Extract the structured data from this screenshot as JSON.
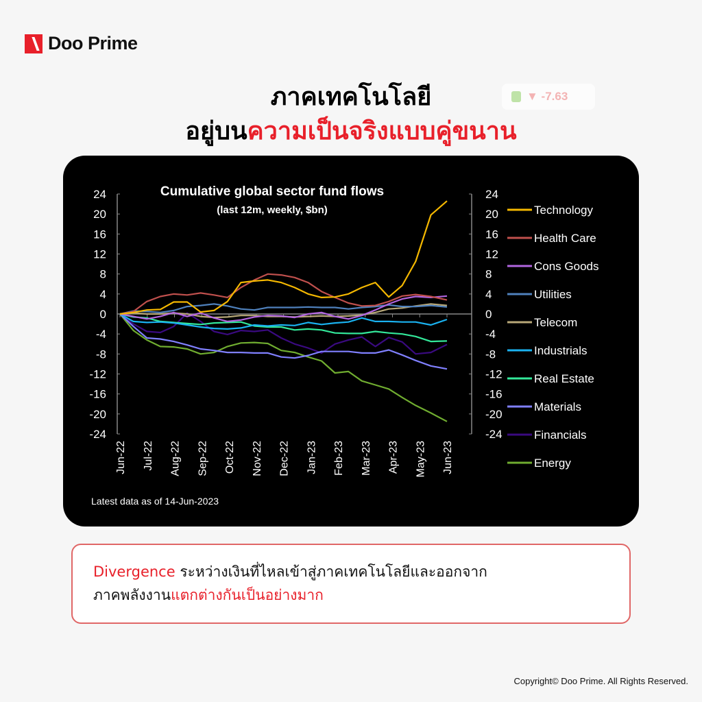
{
  "brand": {
    "name": "Doo Prime"
  },
  "background_badge": {
    "value": "▼ -7.63"
  },
  "headline": {
    "line1": "ภาคเทคโนโลยี",
    "line2_black": "อยู่บน",
    "line2_red": "ความเป็นจริงแบบคู่ขนาน"
  },
  "caption": {
    "line1_red": "Divergence",
    "line1_black": " ระหว่างเงินที่ไหลเข้าสู่ภาคเทคโนโลยีและออกจาก",
    "line2_black": "ภาคพลังงาน",
    "line2_red": "แตกต่างกันเป็นอย่างมาก"
  },
  "copyright": "Copyright© Doo Prime. All Rights Reserved.",
  "colors": {
    "accent": "#e8202a",
    "card": "#000000"
  },
  "chart_data": {
    "type": "line",
    "title": "Cumulative global sector fund flows",
    "subtitle": "(last 12m, weekly, $bn)",
    "note": "Latest data as of 14-Jun-2023",
    "ylim": [
      -24,
      24
    ],
    "yticks": [
      "24",
      "20",
      "16",
      "12",
      "8",
      "4",
      "0",
      "-4",
      "-8",
      "-12",
      "-16",
      "-20",
      "-24"
    ],
    "xlim": [
      "2022-06-14",
      "2023-06-14"
    ],
    "xticks": [
      "Jun-22",
      "Jul-22",
      "Aug-22",
      "Sep-22",
      "Oct-22",
      "Nov-22",
      "Dec-22",
      "Jan-23",
      "Feb-23",
      "Mar-23",
      "Apr-23",
      "May-23",
      "Jun-23"
    ],
    "grid": false,
    "legend": "right",
    "x": [
      "2022-06-14",
      "2022-06-29",
      "2022-07-14",
      "2022-07-29",
      "2022-08-13",
      "2022-08-28",
      "2022-09-12",
      "2022-09-27",
      "2022-10-12",
      "2022-10-27",
      "2022-11-11",
      "2022-11-26",
      "2022-12-11",
      "2022-12-26",
      "2023-01-10",
      "2023-01-25",
      "2023-02-09",
      "2023-02-24",
      "2023-03-11",
      "2023-03-26",
      "2023-04-10",
      "2023-04-25",
      "2023-05-10",
      "2023-05-27",
      "2023-06-14"
    ],
    "series": [
      {
        "name": "Technology",
        "color": "#f5b800",
        "values": [
          0,
          0.3,
          0.8,
          0.9,
          2.4,
          2.4,
          0.4,
          0.7,
          2.5,
          6.3,
          6.6,
          6.8,
          6.3,
          5.3,
          4,
          3.3,
          3.4,
          4,
          5.3,
          6.3,
          3.4,
          5.7,
          10.5,
          19.8,
          22.6
        ]
      },
      {
        "name": "Health Care",
        "color": "#c0504d",
        "values": [
          0,
          0.5,
          2.5,
          3.5,
          4,
          3.8,
          4.2,
          3.8,
          3.3,
          5.3,
          6.8,
          8,
          7.8,
          7.3,
          6.3,
          4.5,
          3.3,
          2.2,
          1.6,
          1.7,
          2.5,
          3.6,
          3.9,
          3.5,
          2.8
        ]
      },
      {
        "name": "Cons Goods",
        "color": "#b266e0",
        "values": [
          0,
          -0.5,
          -1,
          -0.5,
          0.3,
          -0.5,
          0.2,
          -0.8,
          -1.5,
          -1.2,
          -0.6,
          -0.3,
          -0.4,
          -0.7,
          0,
          0.3,
          -0.5,
          -1,
          -0.3,
          0.8,
          2,
          3,
          3.5,
          3.3,
          3.6
        ]
      },
      {
        "name": "Utilities",
        "color": "#4f81bd",
        "values": [
          0,
          0.6,
          0.5,
          0.3,
          0.7,
          1.5,
          1.7,
          2,
          1.6,
          1,
          0.8,
          1.3,
          1.3,
          1.3,
          1.4,
          1.3,
          1.3,
          1,
          1.3,
          1.5,
          1.8,
          1.5,
          1.5,
          1.7,
          1.4
        ]
      },
      {
        "name": "Telecom",
        "color": "#b8a878",
        "values": [
          0,
          0.2,
          0,
          0,
          0.2,
          0,
          -0.5,
          -0.7,
          -0.6,
          -0.3,
          -0.3,
          -0.5,
          -0.5,
          -0.6,
          -0.5,
          -0.4,
          -0.5,
          -0.4,
          -0.2,
          0.3,
          1,
          1.2,
          1.6,
          2,
          1.7
        ]
      },
      {
        "name": "Industrials",
        "color": "#1ab2f0",
        "values": [
          0,
          -1.5,
          -1.7,
          -1.6,
          -1.8,
          -2.2,
          -2.6,
          -2.9,
          -3,
          -2.8,
          -2.2,
          -2.4,
          -2.2,
          -2.3,
          -1.7,
          -2.1,
          -1.8,
          -1.6,
          -0.8,
          -1.5,
          -1.5,
          -1.6,
          -1.6,
          -2.2,
          -1.1
        ]
      },
      {
        "name": "Real Estate",
        "color": "#33e89a",
        "values": [
          0,
          -0.6,
          -0.8,
          -1.5,
          -1.7,
          -1.9,
          -2.1,
          -1.8,
          -1.7,
          -1.6,
          -2.4,
          -2.6,
          -2.6,
          -3.2,
          -3,
          -3.2,
          -3.8,
          -3.9,
          -3.9,
          -3.5,
          -3.8,
          -4,
          -4.5,
          -5.5,
          -5.4
        ]
      },
      {
        "name": "Materials",
        "color": "#8080ff",
        "values": [
          0,
          -2.5,
          -4.8,
          -5,
          -5.5,
          -6.2,
          -7,
          -7.3,
          -7.7,
          -7.7,
          -7.8,
          -7.8,
          -8.6,
          -8.8,
          -8.3,
          -7.5,
          -7.5,
          -7.5,
          -7.8,
          -7.8,
          -7.2,
          -8.2,
          -9.3,
          -10.4,
          -11
        ]
      },
      {
        "name": "Financials",
        "color": "#3a0a80",
        "values": [
          0,
          -2,
          -3.5,
          -3.7,
          -2.5,
          0.2,
          -1.5,
          -3.5,
          -4.1,
          -3.3,
          -3.5,
          -3.2,
          -4.8,
          -6,
          -6.8,
          -7.8,
          -6,
          -5.2,
          -4.6,
          -6.5,
          -4.7,
          -5.6,
          -8,
          -7.7,
          -6.1
        ]
      },
      {
        "name": "Energy",
        "color": "#70ad30",
        "values": [
          0,
          -3.3,
          -5.2,
          -6.5,
          -6.6,
          -7,
          -8,
          -7.7,
          -6.5,
          -5.8,
          -5.7,
          -5.9,
          -7.3,
          -7.7,
          -8.6,
          -9.4,
          -11.8,
          -11.5,
          -13.4,
          -14.2,
          -15,
          -16.7,
          -18.3,
          -19.8,
          -21.5
        ]
      }
    ]
  }
}
